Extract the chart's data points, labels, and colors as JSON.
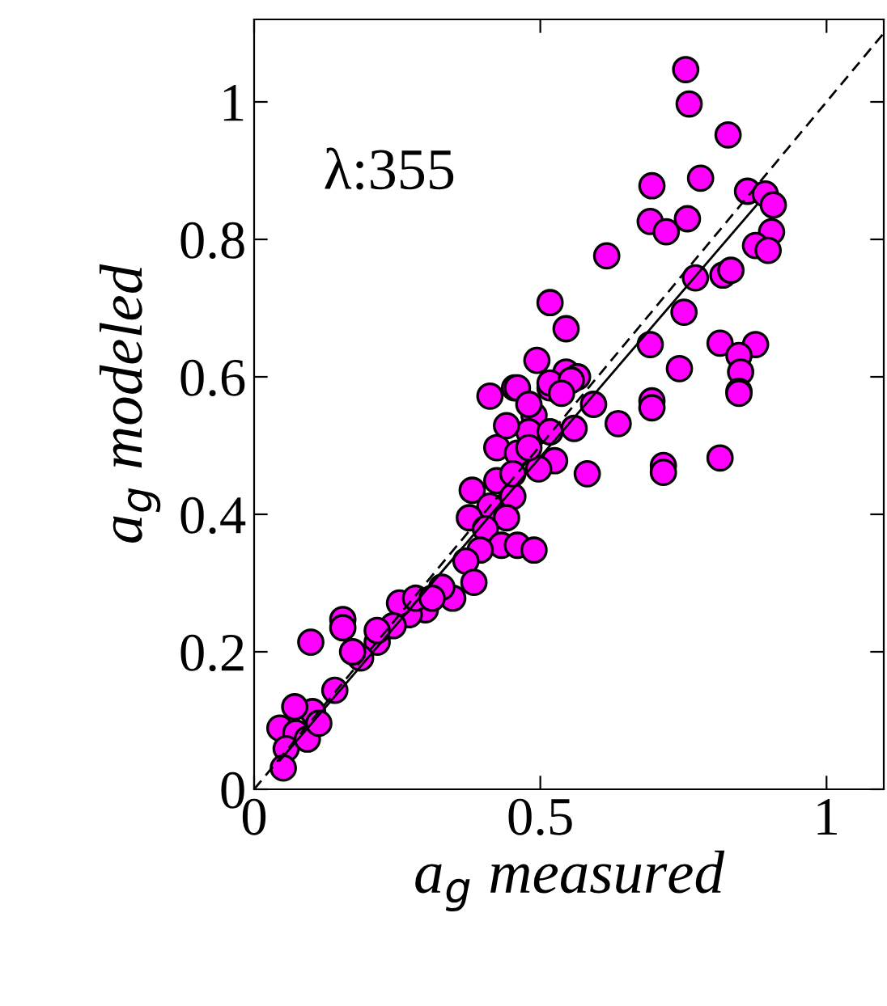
{
  "chart_data": {
    "type": "scatter",
    "xlabel": "a$_{g}$ measured",
    "ylabel": "a$_{g}$ modeled",
    "xlim": [
      0,
      1.1
    ],
    "ylim": [
      0,
      1.12
    ],
    "xticks": [
      0,
      0.5,
      1
    ],
    "yticks": [
      0,
      0.2,
      0.4,
      0.6,
      0.8,
      1
    ],
    "grid": false,
    "marker": "circle",
    "annotations": [
      "λ:355"
    ],
    "series": [
      {
        "color": "#ff00ff",
        "x": [
          0.754,
          0.76,
          0.828,
          0.78,
          0.695,
          0.862,
          0.893,
          0.907,
          0.692,
          0.72,
          0.757,
          0.904,
          0.876,
          0.898,
          0.616,
          0.771,
          0.819,
          0.833,
          0.751,
          0.517,
          0.545,
          0.692,
          0.814,
          0.876,
          0.743,
          0.847,
          0.85,
          0.847,
          0.494,
          0.455,
          0.412,
          0.545,
          0.565,
          0.517,
          0.695,
          0.46,
          0.517,
          0.554,
          0.847,
          0.695,
          0.593,
          0.636,
          0.559,
          0.489,
          0.48,
          0.517,
          0.424,
          0.46,
          0.525,
          0.497,
          0.582,
          0.715,
          0.715,
          0.814,
          0.424,
          0.381,
          0.452,
          0.412,
          0.376,
          0.441,
          0.404,
          0.432,
          0.46,
          0.489,
          0.395,
          0.37,
          0.384,
          0.347,
          0.328,
          0.299,
          0.271,
          0.254,
          0.243,
          0.215,
          0.186,
          0.155,
          0.155,
          0.099,
          0.141,
          0.102,
          0.071,
          0.045,
          0.073,
          0.056,
          0.051,
          0.093,
          0.113,
          0.537,
          0.48,
          0.441,
          0.452,
          0.48,
          0.282,
          0.311,
          0.215,
          0.172
        ],
        "values": [
          1.047,
          0.997,
          0.952,
          0.889,
          0.878,
          0.87,
          0.866,
          0.85,
          0.826,
          0.811,
          0.83,
          0.811,
          0.791,
          0.784,
          0.776,
          0.744,
          0.748,
          0.755,
          0.694,
          0.708,
          0.67,
          0.647,
          0.649,
          0.647,
          0.612,
          0.631,
          0.607,
          0.579,
          0.624,
          0.584,
          0.572,
          0.607,
          0.6,
          0.584,
          0.565,
          0.584,
          0.591,
          0.595,
          0.576,
          0.555,
          0.56,
          0.532,
          0.525,
          0.544,
          0.52,
          0.52,
          0.497,
          0.489,
          0.478,
          0.466,
          0.459,
          0.471,
          0.461,
          0.482,
          0.449,
          0.435,
          0.426,
          0.412,
          0.395,
          0.395,
          0.379,
          0.355,
          0.355,
          0.348,
          0.348,
          0.332,
          0.301,
          0.278,
          0.294,
          0.261,
          0.254,
          0.271,
          0.238,
          0.214,
          0.191,
          0.247,
          0.235,
          0.214,
          0.144,
          0.113,
          0.12,
          0.089,
          0.082,
          0.059,
          0.031,
          0.073,
          0.096,
          0.576,
          0.56,
          0.529,
          0.459,
          0.497,
          0.278,
          0.278,
          0.231,
          0.2
        ]
      },
      {
        "type": "line",
        "color": "#000000",
        "line_style": "dashed",
        "marker": "none",
        "x": [
          0,
          1.1
        ],
        "values": [
          0,
          1.1
        ]
      },
      {
        "type": "line",
        "color": "#000000",
        "line_style": "solid",
        "marker": "none",
        "x": [
          0.045,
          0.878
        ],
        "values": [
          0.042,
          0.85
        ]
      }
    ]
  }
}
